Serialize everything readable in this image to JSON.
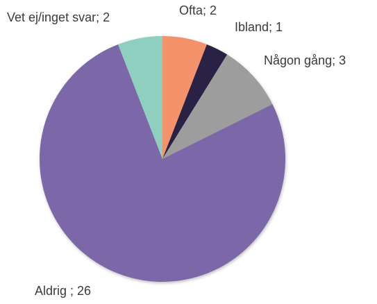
{
  "chart_data": {
    "type": "pie",
    "values": [
      2,
      1,
      3,
      26,
      2
    ],
    "value_labels": [
      "Ofta; 2",
      "Ibland; 1",
      "Någon gång; 3",
      "Aldrig ; 26",
      "Vet ej/inget svar; 2"
    ],
    "colors": [
      "#f4926c",
      "#2c2145",
      "#9d9d9d",
      "#7b67a8",
      "#8fcfc0"
    ]
  }
}
